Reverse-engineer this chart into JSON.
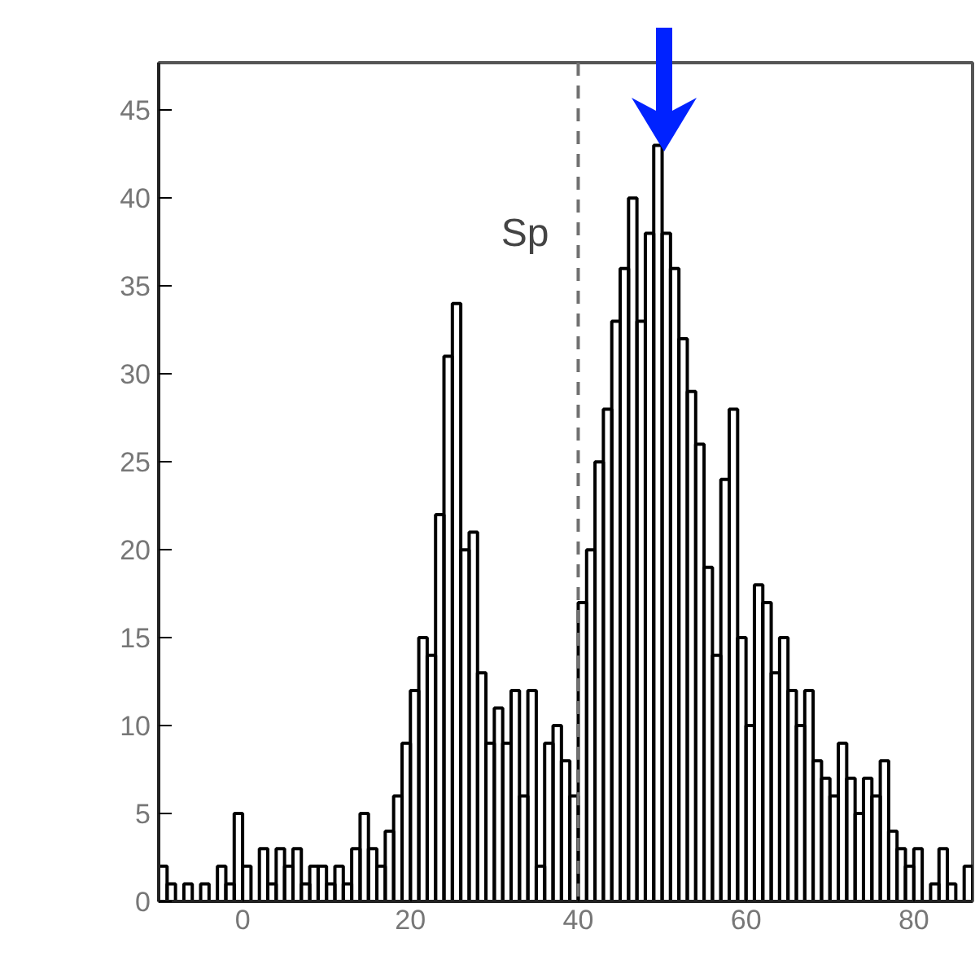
{
  "chart_data": {
    "type": "histogram",
    "bins": [
      -10,
      -9,
      -8,
      -7,
      -6,
      -5,
      -4,
      -3,
      -2,
      -1,
      0,
      1,
      2,
      3,
      4,
      5,
      6,
      7,
      8,
      9,
      10,
      11,
      12,
      13,
      14,
      15,
      16,
      17,
      18,
      19,
      20,
      21,
      22,
      23,
      24,
      25,
      26,
      27,
      28,
      29,
      30,
      31,
      32,
      33,
      34,
      35,
      36,
      37,
      38,
      39,
      40,
      41,
      42,
      43,
      44,
      45,
      46,
      47,
      48,
      49,
      50,
      51,
      52,
      53,
      54,
      55,
      56,
      57,
      58,
      59,
      60,
      61,
      62,
      63,
      64,
      65,
      66,
      67,
      68,
      69,
      70,
      71,
      72,
      73,
      74,
      75,
      76,
      77,
      78,
      79,
      80,
      81,
      82,
      83,
      84,
      85,
      86,
      87
    ],
    "values": [
      2,
      1,
      0,
      1,
      0,
      1,
      0,
      2,
      1,
      5,
      2,
      0,
      3,
      1,
      3,
      2,
      3,
      1,
      2,
      2,
      1,
      2,
      1,
      3,
      5,
      3,
      2,
      4,
      6,
      9,
      12,
      15,
      14,
      22,
      31,
      34,
      20,
      21,
      13,
      9,
      11,
      9,
      12,
      6,
      12,
      2,
      9,
      10,
      8,
      6,
      17,
      20,
      25,
      28,
      33,
      36,
      40,
      33,
      38,
      43,
      38,
      36,
      32,
      29,
      26,
      19,
      14,
      24,
      28,
      15,
      10,
      18,
      17,
      13,
      15,
      12,
      10,
      12,
      8,
      7,
      6,
      9,
      7,
      5,
      7,
      6,
      8,
      4,
      3,
      2,
      3,
      0,
      1,
      3,
      1,
      0,
      2
    ],
    "color": "#000000",
    "xlim": [
      -10,
      87
    ],
    "ylim": [
      0,
      47.7
    ],
    "xticks": [
      0,
      20,
      40,
      60,
      80
    ],
    "yticks": [
      0,
      5,
      10,
      15,
      20,
      25,
      30,
      35,
      40,
      45
    ],
    "grid": false,
    "ref_lines": [
      {
        "axis": "x",
        "value": 40,
        "label": null,
        "color": "#707070",
        "line_style": "dashed"
      }
    ],
    "annotations": [
      "Sp"
    ]
  }
}
